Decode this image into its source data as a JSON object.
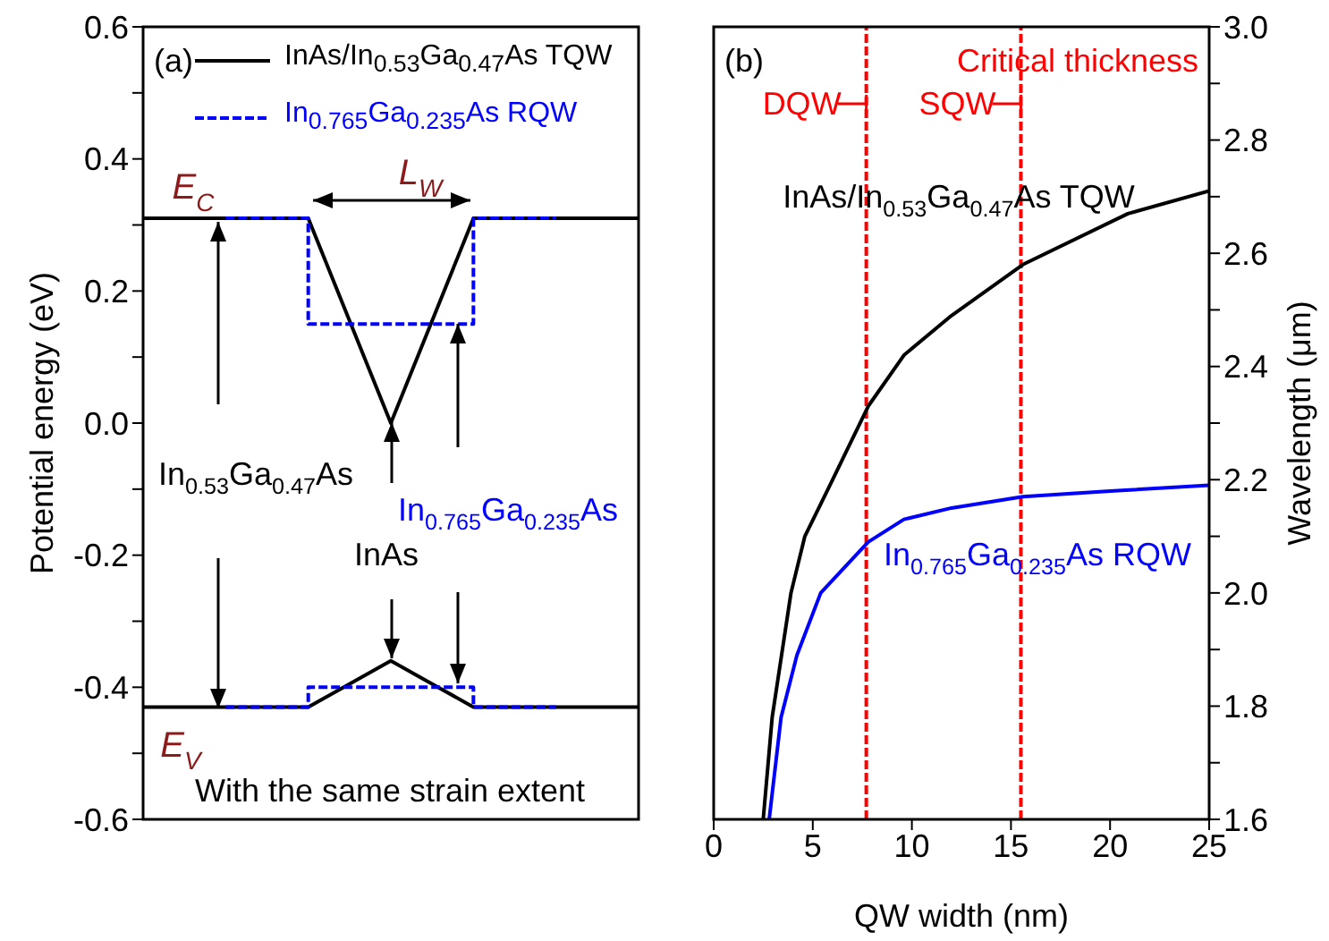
{
  "chart_data": [
    {
      "type": "line",
      "ylabel": "Potential energy (eV)",
      "categories": [
        null,
        null,
        null,
        null,
        null,
        null,
        null
      ],
      "ylim": [
        -0.6,
        0.6
      ],
      "yticks": [
        -0.6,
        {
          "value": -0.5,
          "label": null
        },
        -0.4,
        {
          "value": -0.3,
          "label": null
        },
        -0.2,
        {
          "value": -0.1,
          "label": null
        },
        {
          "value": 0,
          "label": "0.0"
        },
        {
          "value": 0.1,
          "label": null
        },
        0.2,
        {
          "value": 0.3,
          "label": null
        },
        0.4,
        {
          "value": 0.5,
          "label": null
        },
        0.6
      ],
      "tick_labels": "y",
      "legend": "top",
      "series": [
        {
          "name": "InAs/In$_{0.53}$Ga$_{0.47}$As TQW",
          "color": "#000000",
          "values": [
            0.31,
            0.31,
            0.31,
            0,
            0.31,
            0.31,
            0.31
          ]
        },
        {
          "color": "#000000",
          "values": [
            -0.43,
            -0.43,
            -0.43,
            -0.36,
            -0.43,
            -0.43,
            -0.43
          ]
        },
        {
          "name": "In$_{0.765}$Ga$_{0.235}$As RQW",
          "type": "step",
          "color": "#0000ff",
          "line_style": "dashed",
          "values": [
            null,
            0.31,
            null,
            0.15,
            null,
            0.31,
            null
          ]
        },
        {
          "type": "step",
          "color": "#0000ff",
          "line_style": "dashed",
          "values": [
            null,
            -0.43,
            null,
            -0.4,
            null,
            -0.43,
            null
          ]
        }
      ],
      "annotations": [
        "(a)",
        "With the same strain extent",
        "E$_{C}$",
        "L$_{W}$",
        "E$_{V}$",
        "In$_{0.53}$Ga$_{0.47}$As",
        "InAs",
        "In$_{0.765}$Ga$_{0.235}$As"
      ]
    },
    {
      "type": "line",
      "xlabel": "QW width (nm)",
      "ylabel": "Wavelength (μm)",
      "xlim": [
        0,
        25
      ],
      "xticks": [
        0,
        5,
        10,
        15,
        20,
        25
      ],
      "ylim": [
        1.6,
        3.0
      ],
      "yticks": [
        1.6,
        {
          "value": 1.7,
          "label": null
        },
        1.8,
        {
          "value": 1.9,
          "label": null
        },
        {
          "value": 2,
          "label": "2.0"
        },
        {
          "value": 2.1,
          "label": null
        },
        2.2,
        {
          "value": 2.3,
          "label": null
        },
        2.4,
        {
          "value": 2.5,
          "label": null
        },
        2.6,
        {
          "value": 2.7,
          "label": null
        },
        2.8,
        {
          "value": 2.9,
          "label": null
        },
        {
          "value": 3,
          "label": "3.0"
        }
      ],
      "series": [
        {
          "name": "InAs/In$_{0.53}$Ga$_{0.47}$As TQW",
          "color": "#000000",
          "x": [
            2.5,
            2.95,
            3.9,
            4.6,
            6,
            7.8,
            9.6,
            12,
            15.6,
            20.9,
            25
          ],
          "values": [
            1.6,
            1.78,
            2.0,
            2.1,
            2.2,
            2.33,
            2.42,
            2.49,
            2.58,
            2.67,
            2.71
          ]
        },
        {
          "name": "In$_{0.765}$Ga$_{0.235}$As RQW",
          "color": "#0000ff",
          "x": [
            2.8,
            3.4,
            4.2,
            5.4,
            7.8,
            9.6,
            12,
            15.6,
            20,
            25
          ],
          "values": [
            1.6,
            1.78,
            1.89,
            2.0,
            2.09,
            2.13,
            2.15,
            2.17,
            2.18,
            2.19
          ]
        }
      ],
      "ref_lines": [
        {
          "axis": "x",
          "value": 7.7,
          "label": "DQW",
          "color": "#ff0000",
          "line_style": "dashed"
        },
        {
          "axis": "x",
          "value": 15.5,
          "label": "SQW",
          "color": "#ff0000",
          "line_style": "dashed"
        }
      ],
      "annotations": [
        "(b)",
        "Critical thickness"
      ]
    }
  ]
}
